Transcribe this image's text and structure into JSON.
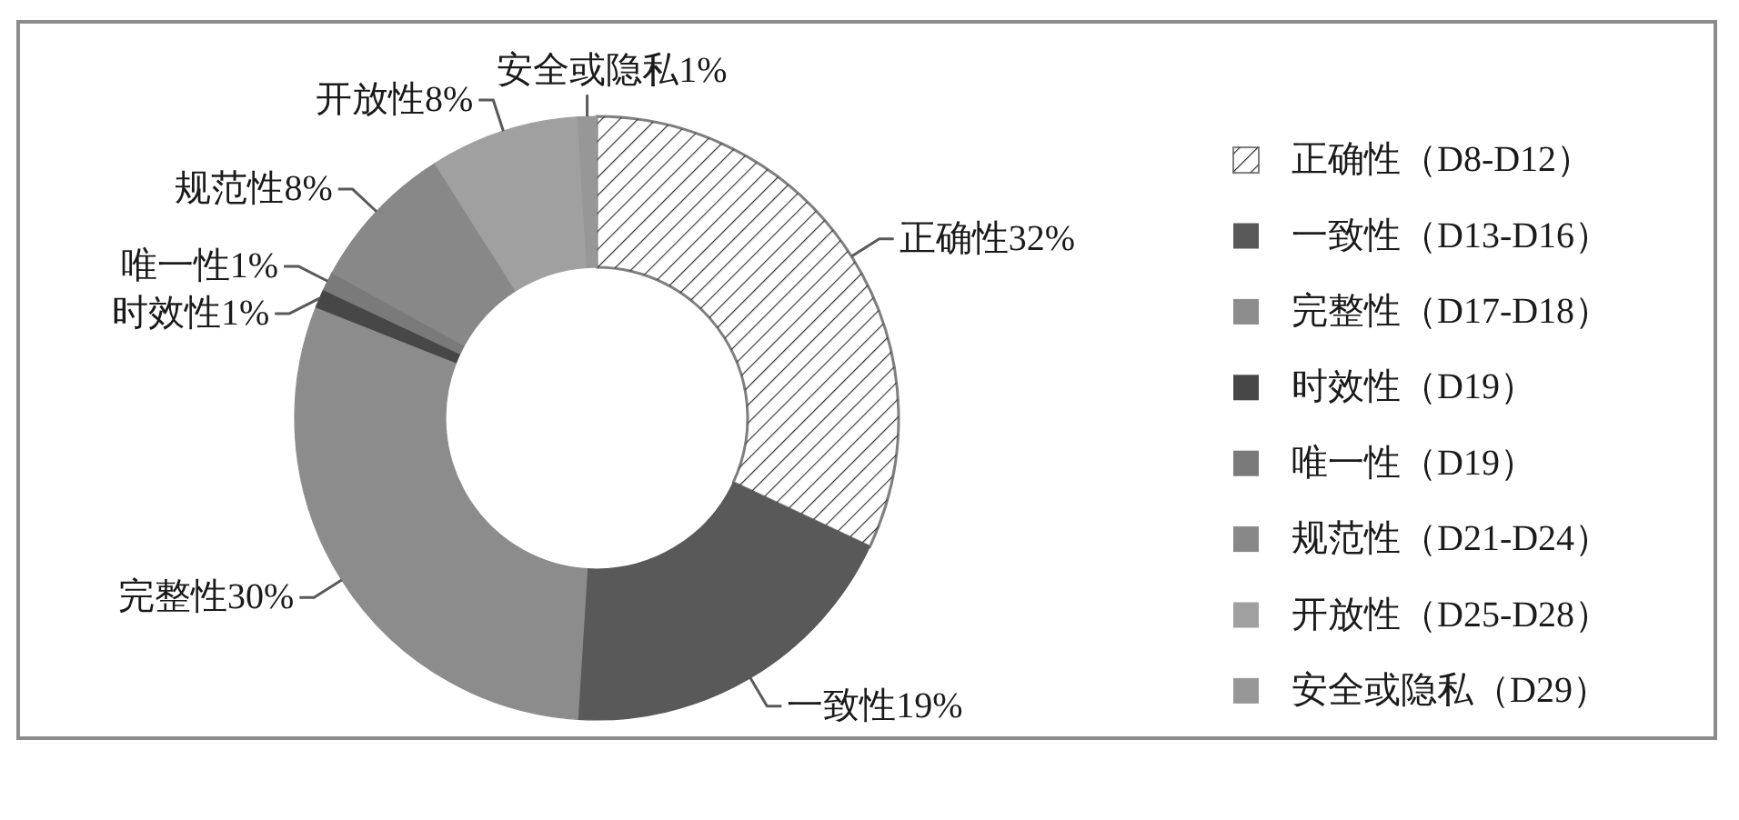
{
  "chart_data": {
    "type": "donut",
    "categories": [
      "正确性（D8-D12）",
      "一致性（D13-D16）",
      "完整性（D17-D18）",
      "时效性（D19）",
      "唯一性（D19）",
      "规范性（D21-D24）",
      "开放性（D25-D28）",
      "安全或隐私（D29）"
    ],
    "values": [
      32,
      19,
      30,
      1,
      1,
      8,
      8,
      1
    ],
    "colors": [
      "#ffffff",
      "#595959",
      "#8c8c8c",
      "#474747",
      "#7a7a7a",
      "#888888",
      "#a0a0a0",
      "#979797"
    ],
    "value_labels": [
      "正确性32%",
      "一致性19%",
      "完整性30%",
      "时效性1%",
      "唯一性1%",
      "规范性8%",
      "开放性8%",
      "安全或隐私1%"
    ],
    "legend": "right"
  }
}
